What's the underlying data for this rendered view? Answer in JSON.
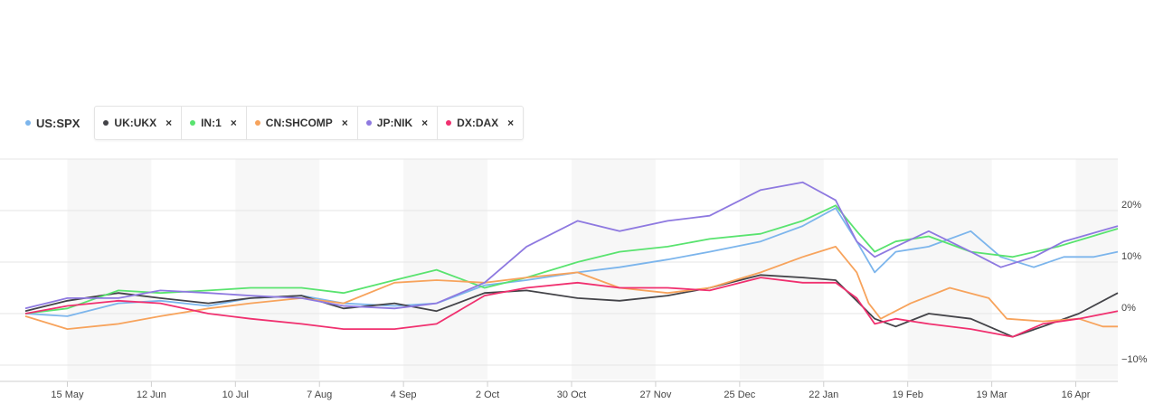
{
  "legend": {
    "primary": {
      "label": "US:SPX",
      "color": "#7cb5ec",
      "icon": "dot-icon"
    },
    "compare": [
      {
        "label": "UK:UKX",
        "color": "#434348"
      },
      {
        "label": "IN:1",
        "color": "#59e36f"
      },
      {
        "label": "CN:SHCOMP",
        "color": "#f7a35c"
      },
      {
        "label": "JP:NIK",
        "color": "#8e79e0"
      },
      {
        "label": "DX:DAX",
        "color": "#f0306f"
      }
    ],
    "remove_symbol": "×"
  },
  "chart_data": {
    "type": "line",
    "x_ticks": [
      "15 May",
      "12 Jun",
      "10 Jul",
      "7 Aug",
      "4 Sep",
      "2 Oct",
      "30 Oct",
      "27 Nov",
      "25 Dec",
      "22 Jan",
      "19 Feb",
      "19 Mar",
      "16 Apr"
    ],
    "y_ticks": [
      "20%",
      "10%",
      "0%",
      "−10%"
    ],
    "y_tick_values": [
      20,
      10,
      0,
      -10
    ],
    "ylim": [
      -12.8,
      30
    ],
    "grid": "horizontal",
    "alternating_bands": true,
    "series": [
      {
        "name": "US:SPX",
        "color": "#7cb5ec",
        "points": [
          [
            "2017-05-01",
            0
          ],
          [
            "2017-05-15",
            -0.5
          ],
          [
            "2017-06-01",
            2
          ],
          [
            "2017-06-15",
            2.5
          ],
          [
            "2017-07-01",
            1.5
          ],
          [
            "2017-07-15",
            3
          ],
          [
            "2017-08-01",
            3.5
          ],
          [
            "2017-08-15",
            2
          ],
          [
            "2017-09-01",
            1.5
          ],
          [
            "2017-09-15",
            2
          ],
          [
            "2017-10-01",
            5.5
          ],
          [
            "2017-10-15",
            6.5
          ],
          [
            "2017-11-01",
            8
          ],
          [
            "2017-11-15",
            9
          ],
          [
            "2017-12-01",
            10.5
          ],
          [
            "2017-12-15",
            12
          ],
          [
            "2018-01-01",
            14
          ],
          [
            "2018-01-15",
            17
          ],
          [
            "2018-01-26",
            20.5
          ],
          [
            "2018-02-02",
            14
          ],
          [
            "2018-02-08",
            8
          ],
          [
            "2018-02-15",
            12
          ],
          [
            "2018-02-26",
            13
          ],
          [
            "2018-03-12",
            16
          ],
          [
            "2018-03-22",
            11
          ],
          [
            "2018-04-02",
            9
          ],
          [
            "2018-04-12",
            11
          ],
          [
            "2018-04-22",
            11
          ],
          [
            "2018-04-30",
            12
          ]
        ]
      },
      {
        "name": "UK:UKX",
        "color": "#434348",
        "points": [
          [
            "2017-05-01",
            0.5
          ],
          [
            "2017-05-15",
            2.5
          ],
          [
            "2017-06-01",
            4
          ],
          [
            "2017-06-15",
            3
          ],
          [
            "2017-07-01",
            2
          ],
          [
            "2017-07-15",
            3
          ],
          [
            "2017-08-01",
            3.5
          ],
          [
            "2017-08-15",
            1
          ],
          [
            "2017-09-01",
            2
          ],
          [
            "2017-09-15",
            0.5
          ],
          [
            "2017-10-01",
            4
          ],
          [
            "2017-10-15",
            4.5
          ],
          [
            "2017-11-01",
            3
          ],
          [
            "2017-11-15",
            2.5
          ],
          [
            "2017-12-01",
            3.5
          ],
          [
            "2017-12-15",
            5
          ],
          [
            "2018-01-01",
            7.5
          ],
          [
            "2018-01-15",
            7
          ],
          [
            "2018-01-26",
            6.5
          ],
          [
            "2018-02-02",
            2.5
          ],
          [
            "2018-02-08",
            -1
          ],
          [
            "2018-02-15",
            -2.5
          ],
          [
            "2018-02-26",
            0
          ],
          [
            "2018-03-12",
            -1
          ],
          [
            "2018-03-26",
            -4.5
          ],
          [
            "2018-04-05",
            -2.5
          ],
          [
            "2018-04-17",
            0
          ],
          [
            "2018-04-30",
            4
          ]
        ]
      },
      {
        "name": "IN:1",
        "color": "#59e36f",
        "points": [
          [
            "2017-05-01",
            0
          ],
          [
            "2017-05-15",
            1
          ],
          [
            "2017-06-01",
            4.5
          ],
          [
            "2017-06-15",
            4
          ],
          [
            "2017-07-01",
            4.5
          ],
          [
            "2017-07-15",
            5
          ],
          [
            "2017-08-01",
            5
          ],
          [
            "2017-08-15",
            4
          ],
          [
            "2017-09-01",
            6.5
          ],
          [
            "2017-09-15",
            8.5
          ],
          [
            "2017-10-01",
            5
          ],
          [
            "2017-10-15",
            7
          ],
          [
            "2017-11-01",
            10
          ],
          [
            "2017-11-15",
            12
          ],
          [
            "2017-12-01",
            13
          ],
          [
            "2017-12-15",
            14.5
          ],
          [
            "2018-01-01",
            15.5
          ],
          [
            "2018-01-15",
            18
          ],
          [
            "2018-01-26",
            21
          ],
          [
            "2018-02-02",
            16
          ],
          [
            "2018-02-08",
            12
          ],
          [
            "2018-02-15",
            14
          ],
          [
            "2018-02-26",
            15
          ],
          [
            "2018-03-12",
            12
          ],
          [
            "2018-03-26",
            11
          ],
          [
            "2018-04-10",
            13
          ],
          [
            "2018-04-30",
            16.5
          ]
        ]
      },
      {
        "name": "CN:SHCOMP",
        "color": "#f7a35c",
        "points": [
          [
            "2017-05-01",
            -0.5
          ],
          [
            "2017-05-15",
            -3
          ],
          [
            "2017-06-01",
            -2
          ],
          [
            "2017-06-15",
            -0.5
          ],
          [
            "2017-07-01",
            1
          ],
          [
            "2017-07-15",
            2
          ],
          [
            "2017-08-01",
            3
          ],
          [
            "2017-08-15",
            2
          ],
          [
            "2017-09-01",
            6
          ],
          [
            "2017-09-15",
            6.5
          ],
          [
            "2017-10-01",
            6
          ],
          [
            "2017-10-15",
            7
          ],
          [
            "2017-11-01",
            8
          ],
          [
            "2017-11-15",
            5
          ],
          [
            "2017-12-01",
            4
          ],
          [
            "2017-12-15",
            5
          ],
          [
            "2018-01-01",
            8
          ],
          [
            "2018-01-15",
            11
          ],
          [
            "2018-01-26",
            13
          ],
          [
            "2018-02-02",
            8
          ],
          [
            "2018-02-06",
            2
          ],
          [
            "2018-02-10",
            -1
          ],
          [
            "2018-02-20",
            2
          ],
          [
            "2018-03-05",
            5
          ],
          [
            "2018-03-18",
            3
          ],
          [
            "2018-03-24",
            -1
          ],
          [
            "2018-04-05",
            -1.5
          ],
          [
            "2018-04-17",
            -1
          ],
          [
            "2018-04-25",
            -2.5
          ],
          [
            "2018-04-30",
            -2.5
          ]
        ]
      },
      {
        "name": "JP:NIK",
        "color": "#8e79e0",
        "points": [
          [
            "2017-05-01",
            1
          ],
          [
            "2017-05-15",
            3
          ],
          [
            "2017-06-01",
            3
          ],
          [
            "2017-06-15",
            4.5
          ],
          [
            "2017-07-01",
            4
          ],
          [
            "2017-07-15",
            3.5
          ],
          [
            "2017-08-01",
            3
          ],
          [
            "2017-08-15",
            1.5
          ],
          [
            "2017-09-01",
            1
          ],
          [
            "2017-09-15",
            2
          ],
          [
            "2017-10-01",
            6
          ],
          [
            "2017-10-15",
            13
          ],
          [
            "2017-11-01",
            18
          ],
          [
            "2017-11-15",
            16
          ],
          [
            "2017-12-01",
            18
          ],
          [
            "2017-12-15",
            19
          ],
          [
            "2018-01-01",
            24
          ],
          [
            "2018-01-15",
            25.5
          ],
          [
            "2018-01-26",
            22
          ],
          [
            "2018-02-02",
            14
          ],
          [
            "2018-02-08",
            11
          ],
          [
            "2018-02-15",
            13
          ],
          [
            "2018-02-26",
            16
          ],
          [
            "2018-03-12",
            12
          ],
          [
            "2018-03-22",
            9
          ],
          [
            "2018-04-02",
            11
          ],
          [
            "2018-04-12",
            14
          ],
          [
            "2018-04-30",
            17
          ]
        ]
      },
      {
        "name": "DX:DAX",
        "color": "#f0306f",
        "points": [
          [
            "2017-05-01",
            0
          ],
          [
            "2017-05-15",
            1.5
          ],
          [
            "2017-06-01",
            2.5
          ],
          [
            "2017-06-15",
            2
          ],
          [
            "2017-07-01",
            0
          ],
          [
            "2017-07-15",
            -1
          ],
          [
            "2017-08-01",
            -2
          ],
          [
            "2017-08-15",
            -3
          ],
          [
            "2017-09-01",
            -3
          ],
          [
            "2017-09-15",
            -2
          ],
          [
            "2017-10-01",
            3.5
          ],
          [
            "2017-10-15",
            5
          ],
          [
            "2017-11-01",
            6
          ],
          [
            "2017-11-15",
            5
          ],
          [
            "2017-12-01",
            5
          ],
          [
            "2017-12-15",
            4.5
          ],
          [
            "2018-01-01",
            7
          ],
          [
            "2018-01-15",
            6
          ],
          [
            "2018-01-26",
            6
          ],
          [
            "2018-02-02",
            3
          ],
          [
            "2018-02-08",
            -2
          ],
          [
            "2018-02-15",
            -1
          ],
          [
            "2018-02-26",
            -2
          ],
          [
            "2018-03-12",
            -3
          ],
          [
            "2018-03-26",
            -4.5
          ],
          [
            "2018-04-05",
            -2
          ],
          [
            "2018-04-17",
            -1
          ],
          [
            "2018-04-30",
            0.5
          ]
        ]
      }
    ]
  }
}
